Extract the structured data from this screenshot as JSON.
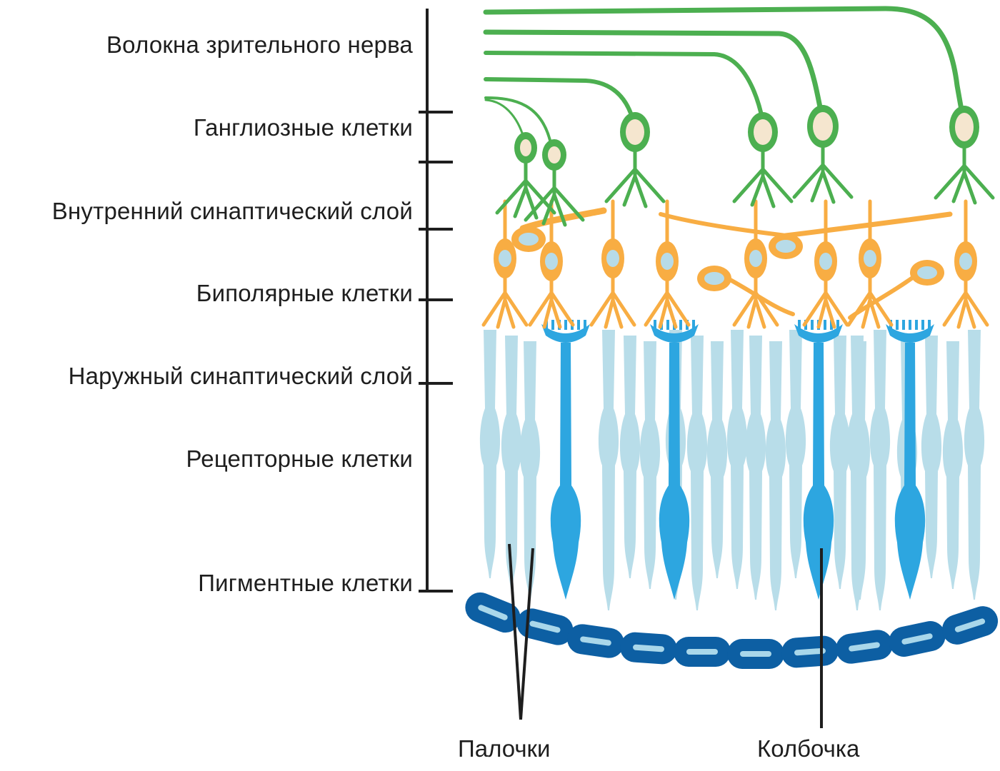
{
  "layers": [
    {
      "id": "optic-nerve-fibers",
      "label": "Волокна зрительного нерва"
    },
    {
      "id": "ganglion-cells",
      "label": "Ганглиозные клетки"
    },
    {
      "id": "inner-plexiform",
      "label": "Внутренний синаптический слой"
    },
    {
      "id": "bipolar-cells",
      "label": "Биполярные клетки"
    },
    {
      "id": "outer-plexiform",
      "label": "Наружный синаптический слой"
    },
    {
      "id": "receptor-cells",
      "label": "Рецепторные клетки"
    },
    {
      "id": "pigment-cells",
      "label": "Пигментные клетки"
    }
  ],
  "pointers": {
    "rods": "Палочки",
    "cone": "Колбочка"
  },
  "colors": {
    "ganglion": "#4caf50",
    "nucleus_ganglion": "#f5e6cf",
    "bipolar": "#f8ad43",
    "nucleus_bipolar": "#b7dbe8",
    "rod": "#b8dde9",
    "cone": "#2da6e0",
    "pigment_outer": "#0d5fa3",
    "pigment_inner": "#a9d7ea",
    "line": "#1e1e1e"
  }
}
